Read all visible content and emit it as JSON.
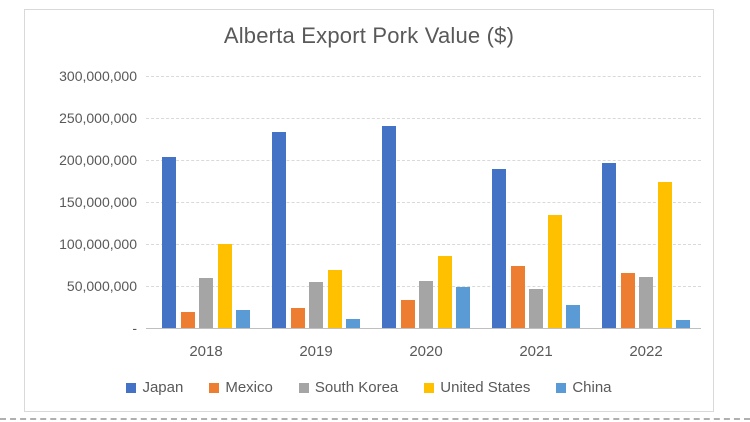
{
  "chart_data": {
    "type": "bar",
    "title": "Alberta Export Pork Value ($)",
    "categories": [
      "2018",
      "2019",
      "2020",
      "2021",
      "2022"
    ],
    "series": [
      {
        "name": "Japan",
        "color": "#4472C4",
        "values": [
          204000000,
          233000000,
          241000000,
          189000000,
          196000000
        ]
      },
      {
        "name": "Mexico",
        "color": "#ED7D31",
        "values": [
          19000000,
          24000000,
          33000000,
          74000000,
          66000000
        ]
      },
      {
        "name": "South Korea",
        "color": "#A5A5A5",
        "values": [
          59000000,
          55000000,
          56000000,
          46000000,
          61000000
        ]
      },
      {
        "name": "United States",
        "color": "#FFC000",
        "values": [
          100000000,
          69000000,
          86000000,
          135000000,
          174000000
        ]
      },
      {
        "name": "China",
        "color": "#5B9BD5",
        "values": [
          21000000,
          11000000,
          49000000,
          27000000,
          9000000
        ]
      }
    ],
    "y_axis": {
      "min": 0,
      "max": 300000000,
      "step": 50000000,
      "tick_labels": [
        "-",
        "50,000,000",
        "100,000,000",
        "150,000,000",
        "200,000,000",
        "250,000,000",
        "300,000,000"
      ]
    },
    "grid": true,
    "legend_position": "bottom",
    "colors": {
      "title_text": "#595959",
      "axis_text": "#595959",
      "gridline": "#d9d9d9",
      "frame_border": "#d9d9d9"
    }
  }
}
